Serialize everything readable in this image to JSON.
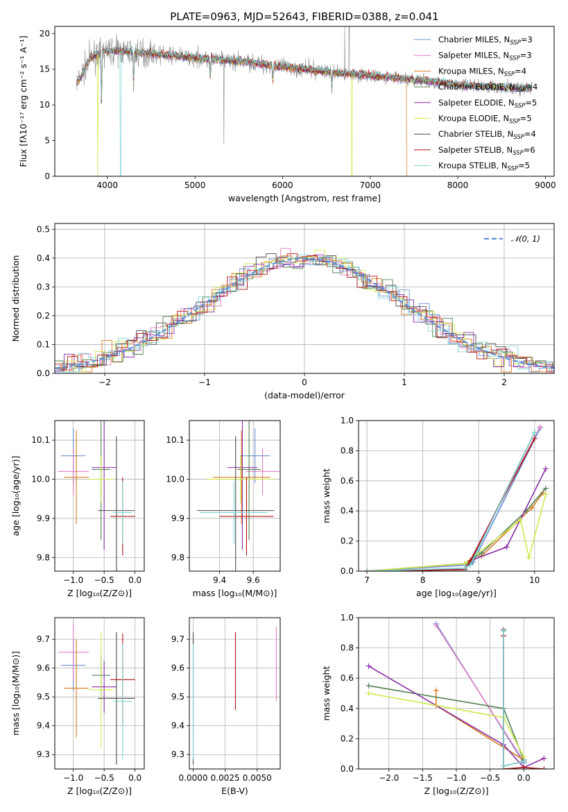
{
  "figure": {
    "title": "PLATE=0963, MJD=52643, FIBERID=0388, z=0.041"
  },
  "models": [
    {
      "name": "Chabrier MILES",
      "nssp": "3",
      "color": "#6b8fd6"
    },
    {
      "name": "Salpeter MILES",
      "nssp": "3",
      "color": "#e07fc2"
    },
    {
      "name": "Kroupa MILES",
      "nssp": "4",
      "color": "#d97a1e"
    },
    {
      "name": "Chabrier ELODIE",
      "nssp": "4",
      "color": "#4f7f4f"
    },
    {
      "name": "Salpeter ELODIE",
      "nssp": "5",
      "color": "#8a2aa8"
    },
    {
      "name": "Kroupa ELODIE",
      "nssp": "5",
      "color": "#cfe84a"
    },
    {
      "name": "Chabrier STELIB",
      "nssp": "4",
      "color": "#4a4a4a"
    },
    {
      "name": "Salpeter STELIB",
      "nssp": "6",
      "color": "#b30f0f"
    },
    {
      "name": "Kroupa STELIB",
      "nssp": "5",
      "color": "#7fd3d3"
    }
  ],
  "chart_data": [
    {
      "id": "spectrum",
      "type": "line",
      "xlabel": "wavelength [Angstrom, rest frame]",
      "ylabel": "Flux [fλ10⁻¹⁷ erg cm⁻² s⁻¹ A⁻¹]",
      "xlim": [
        3400,
        9100
      ],
      "ylim": [
        0,
        21
      ],
      "xticks": [
        4000,
        5000,
        6000,
        7000,
        8000,
        9000
      ],
      "yticks": [
        0,
        5,
        10,
        15,
        20
      ],
      "legend": "top-right",
      "continuum": [
        [
          3650,
          13
        ],
        [
          3700,
          14
        ],
        [
          3800,
          16.5
        ],
        [
          3950,
          17.5
        ],
        [
          4100,
          17.6
        ],
        [
          4400,
          17.3
        ],
        [
          4800,
          16.8
        ],
        [
          5200,
          16.4
        ],
        [
          5600,
          16
        ],
        [
          6000,
          15.3
        ],
        [
          6400,
          14.8
        ],
        [
          6800,
          14.3
        ],
        [
          7200,
          13.9
        ],
        [
          7600,
          13.4
        ],
        [
          8000,
          12.8
        ],
        [
          8400,
          12.5
        ],
        [
          8850,
          12.3
        ]
      ],
      "absorption_dips": [
        [
          3933,
          9
        ],
        [
          4300,
          12
        ],
        [
          5175,
          13.5
        ],
        [
          5890,
          13
        ],
        [
          6563,
          12
        ]
      ],
      "data_spikes": [
        [
          5330,
          4.5
        ],
        [
          6710,
          21
        ],
        [
          6760,
          21
        ]
      ],
      "model_drops": [
        [
          3890,
          "Kroupa ELODIE"
        ],
        [
          4150,
          "Kroupa STELIB"
        ],
        [
          6790,
          "Kroupa ELODIE"
        ],
        [
          7420,
          "Kroupa MILES"
        ]
      ]
    },
    {
      "id": "residuals",
      "type": "step",
      "xlabel": "(data-model)/error",
      "ylabel": "Normed distribution",
      "xlim": [
        -2.5,
        2.5
      ],
      "ylim": [
        0,
        0.52
      ],
      "xticks": [
        -2,
        -1,
        0,
        1,
        2
      ],
      "yticks": [
        0.0,
        0.1,
        0.2,
        0.3,
        0.4,
        0.5
      ],
      "grid": true,
      "legend": "top-right",
      "reference_label": "𝒩(0, 1)",
      "reference_color": "#5a8fd6",
      "bin_width": 0.1
    },
    {
      "id": "age_vs_Z",
      "type": "errorbar",
      "xlabel": "Z [log₁₀(Z/Z⊙)]",
      "ylabel": "age  [log₁₀(age/yr)]",
      "xlim": [
        -1.3,
        0.15
      ],
      "ylim": [
        9.765,
        10.15
      ],
      "xticks": [
        -1.0,
        -0.5,
        0.0
      ],
      "yticks": [
        9.8,
        9.9,
        10.0,
        10.1
      ],
      "grid": true,
      "points": [
        {
          "model": "Chabrier MILES",
          "x": -1.0,
          "xerr": 0.2,
          "y": 10.06,
          "yerr": 0.07
        },
        {
          "model": "Salpeter MILES",
          "x": -1.0,
          "xerr": 0.25,
          "y": 10.02,
          "yerr": 0.06
        },
        {
          "model": "Kroupa MILES",
          "x": -0.95,
          "xerr": 0.2,
          "y": 10.005,
          "yerr": 0.12
        },
        {
          "model": "Chabrier ELODIE",
          "x": -0.55,
          "xerr": 0.15,
          "y": 10.025,
          "yerr": 0.18
        },
        {
          "model": "Salpeter ELODIE",
          "x": -0.5,
          "xerr": 0.2,
          "y": 10.03,
          "yerr": 0.21
        },
        {
          "model": "Kroupa ELODIE",
          "x": -0.55,
          "xerr": 0.2,
          "y": 10.0,
          "yerr": 0.06
        },
        {
          "model": "Chabrier STELIB",
          "x": -0.3,
          "xerr": 0.3,
          "y": 9.92,
          "yerr": 0.19
        },
        {
          "model": "Salpeter STELIB",
          "x": -0.2,
          "xerr": 0.2,
          "y": 9.905,
          "yerr": 0.1
        },
        {
          "model": "Kroupa STELIB",
          "x": -0.2,
          "xerr": 0.15,
          "y": 9.915,
          "yerr": 0.08
        }
      ]
    },
    {
      "id": "age_vs_mass",
      "type": "errorbar",
      "xlabel": "mass [log₁₀(M/M⊙)]",
      "ylabel": "",
      "xlim": [
        9.22,
        9.76
      ],
      "ylim": [
        9.765,
        10.15
      ],
      "xticks": [
        9.4,
        9.6
      ],
      "yticks": [
        9.8,
        9.9,
        10.0,
        10.1
      ],
      "grid": true,
      "points": [
        {
          "model": "Chabrier MILES",
          "x": 9.61,
          "xerr": 0.09,
          "y": 10.06,
          "yerr": 0.07
        },
        {
          "model": "Salpeter MILES",
          "x": 9.655,
          "xerr": 0.1,
          "y": 10.02,
          "yerr": 0.06
        },
        {
          "model": "Kroupa MILES",
          "x": 9.53,
          "xerr": 0.17,
          "y": 10.005,
          "yerr": 0.12
        },
        {
          "model": "Chabrier ELODIE",
          "x": 9.575,
          "xerr": 0.07,
          "y": 10.025,
          "yerr": 0.18
        },
        {
          "model": "Salpeter ELODIE",
          "x": 9.535,
          "xerr": 0.09,
          "y": 10.03,
          "yerr": 0.21
        },
        {
          "model": "Kroupa ELODIE",
          "x": 9.525,
          "xerr": 0.2,
          "y": 10.0,
          "yerr": 0.06
        },
        {
          "model": "Chabrier STELIB",
          "x": 9.495,
          "xerr": 0.23,
          "y": 9.92,
          "yerr": 0.19
        },
        {
          "model": "Salpeter STELIB",
          "x": 9.56,
          "xerr": 0.16,
          "y": 9.905,
          "yerr": 0.1
        },
        {
          "model": "Kroupa STELIB",
          "x": 9.485,
          "xerr": 0.2,
          "y": 9.915,
          "yerr": 0.08
        }
      ]
    },
    {
      "id": "weight_vs_age",
      "type": "line",
      "xlabel": "age  [log₁₀(age/yr)]",
      "ylabel": "mass weight",
      "xlim": [
        6.85,
        10.35
      ],
      "ylim": [
        0,
        1.0
      ],
      "xticks": [
        7,
        8,
        9,
        10
      ],
      "yticks": [
        0.0,
        0.2,
        0.4,
        0.6,
        0.8,
        1.0
      ],
      "grid": true,
      "series": [
        {
          "model": "Chabrier MILES",
          "points": [
            [
              7.0,
              0.0
            ],
            [
              8.75,
              0.04
            ],
            [
              8.9,
              0.06
            ],
            [
              10.1,
              0.95
            ]
          ]
        },
        {
          "model": "Salpeter MILES",
          "points": [
            [
              7.0,
              0.0
            ],
            [
              8.75,
              0.05
            ],
            [
              8.85,
              0.07
            ],
            [
              10.1,
              0.96
            ]
          ]
        },
        {
          "model": "Kroupa MILES",
          "points": [
            [
              7.0,
              0.0
            ],
            [
              8.75,
              0.05
            ],
            [
              9.05,
              0.1
            ],
            [
              9.95,
              0.42
            ],
            [
              10.15,
              0.52
            ]
          ]
        },
        {
          "model": "Chabrier ELODIE",
          "points": [
            [
              7.0,
              0.0
            ],
            [
              8.75,
              0.05
            ],
            [
              9.05,
              0.12
            ],
            [
              9.85,
              0.4
            ],
            [
              10.2,
              0.55
            ]
          ]
        },
        {
          "model": "Salpeter ELODIE",
          "points": [
            [
              7.0,
              0.0
            ],
            [
              8.75,
              0.01
            ],
            [
              8.85,
              0.07
            ],
            [
              9.5,
              0.16
            ],
            [
              10.2,
              0.68
            ]
          ]
        },
        {
          "model": "Kroupa ELODIE",
          "points": [
            [
              7.0,
              0.0
            ],
            [
              8.75,
              0.05
            ],
            [
              9.75,
              0.34
            ],
            [
              9.9,
              0.09
            ],
            [
              10.2,
              0.51
            ]
          ]
        },
        {
          "model": "Chabrier STELIB",
          "points": [
            [
              7.0,
              0.0
            ],
            [
              8.75,
              0.02
            ],
            [
              8.85,
              0.05
            ],
            [
              10.0,
              0.92
            ]
          ]
        },
        {
          "model": "Salpeter STELIB",
          "points": [
            [
              7.0,
              0.0
            ],
            [
              8.75,
              0.01
            ],
            [
              8.85,
              0.07
            ],
            [
              10.0,
              0.88
            ]
          ]
        },
        {
          "model": "Kroupa STELIB",
          "points": [
            [
              7.0,
              0.0
            ],
            [
              8.75,
              0.02
            ],
            [
              8.85,
              0.04
            ],
            [
              10.0,
              0.92
            ]
          ]
        }
      ]
    },
    {
      "id": "mass_vs_Z",
      "type": "errorbar",
      "xlabel": "Z [log₁₀(Z/Z⊙)]",
      "ylabel": "mass [log₁₀(M/M⊙)]",
      "xlim": [
        -1.3,
        0.15
      ],
      "ylim": [
        9.25,
        9.775
      ],
      "xticks": [
        -1.0,
        -0.5,
        0.0
      ],
      "yticks": [
        9.3,
        9.4,
        9.5,
        9.6,
        9.7
      ],
      "grid": true,
      "points": [
        {
          "model": "Chabrier MILES",
          "x": -1.0,
          "xerr": 0.2,
          "y": 9.61,
          "yerr": 0.09
        },
        {
          "model": "Salpeter MILES",
          "x": -1.0,
          "xerr": 0.25,
          "y": 9.655,
          "yerr": 0.1
        },
        {
          "model": "Kroupa MILES",
          "x": -0.95,
          "xerr": 0.2,
          "y": 9.53,
          "yerr": 0.17
        },
        {
          "model": "Chabrier ELODIE",
          "x": -0.55,
          "xerr": 0.15,
          "y": 9.575,
          "yerr": 0.07
        },
        {
          "model": "Salpeter ELODIE",
          "x": -0.5,
          "xerr": 0.2,
          "y": 9.535,
          "yerr": 0.09
        },
        {
          "model": "Kroupa ELODIE",
          "x": -0.55,
          "xerr": 0.2,
          "y": 9.525,
          "yerr": 0.2
        },
        {
          "model": "Chabrier STELIB",
          "x": -0.3,
          "xerr": 0.3,
          "y": 9.495,
          "yerr": 0.23
        },
        {
          "model": "Salpeter STELIB",
          "x": -0.2,
          "xerr": 0.2,
          "y": 9.56,
          "yerr": 0.16
        },
        {
          "model": "Kroupa STELIB",
          "x": -0.2,
          "xerr": 0.15,
          "y": 9.485,
          "yerr": 0.2
        }
      ]
    },
    {
      "id": "mass_vs_ebv",
      "type": "errorbar",
      "xlabel": "E(B-V)",
      "ylabel": "",
      "xlim": [
        -0.0003,
        0.0068
      ],
      "ylim": [
        9.25,
        9.775
      ],
      "xticks": [
        0.0,
        0.0025,
        0.005
      ],
      "xticklabels": [
        "0.0000",
        "0.0025",
        "0.0050"
      ],
      "yticks": [
        9.3,
        9.4,
        9.5,
        9.6,
        9.7
      ],
      "grid": true,
      "points": [
        {
          "model": "Chabrier MILES",
          "x": 0.0,
          "xerr": 0,
          "y": 9.61,
          "yerr": 0.09
        },
        {
          "model": "Kroupa MILES",
          "x": 0.0,
          "xerr": 0,
          "y": 9.53,
          "yerr": 0.17
        },
        {
          "model": "Chabrier STELIB",
          "x": 0.0,
          "xerr": 0,
          "y": 9.495,
          "yerr": 0.23
        },
        {
          "model": "Kroupa STELIB",
          "x": 0.0,
          "xerr": 0,
          "y": 9.485,
          "yerr": 0.2
        },
        {
          "model": "Salpeter STELIB",
          "x": 0.0033,
          "xerr": 0,
          "y": 9.59,
          "yerr": 0.135
        },
        {
          "model": "Salpeter MILES",
          "x": 0.0065,
          "xerr": 0,
          "y": 9.615,
          "yerr": 0.13
        }
      ]
    },
    {
      "id": "weight_vs_Z",
      "type": "line",
      "xlabel": "Z [log₁₀(Z/Z⊙)]",
      "ylabel": "mass weight",
      "xlim": [
        -2.45,
        0.45
      ],
      "ylim": [
        0,
        1.0
      ],
      "xticks": [
        -2.0,
        -1.5,
        -1.0,
        -0.5,
        0.0
      ],
      "yticks": [
        0.0,
        0.2,
        0.4,
        0.6,
        0.8,
        1.0
      ],
      "grid": true,
      "series": [
        {
          "model": "Chabrier MILES",
          "points": [
            [
              -1.3,
              0.96
            ],
            [
              0.0,
              0.04
            ]
          ]
        },
        {
          "model": "Salpeter MILES",
          "points": [
            [
              -1.3,
              0.95
            ],
            [
              0.0,
              0.05
            ]
          ]
        },
        {
          "model": "Kroupa MILES",
          "points": [
            [
              -1.3,
              0.52
            ],
            [
              -1.3,
              0.42
            ],
            [
              0.0,
              0.06
            ]
          ]
        },
        {
          "model": "Chabrier ELODIE",
          "points": [
            [
              -2.3,
              0.55
            ],
            [
              -0.3,
              0.4
            ],
            [
              0.0,
              0.06
            ]
          ]
        },
        {
          "model": "Salpeter ELODIE",
          "points": [
            [
              -2.3,
              0.68
            ],
            [
              -0.3,
              0.16
            ],
            [
              0.0,
              0.01
            ],
            [
              0.3,
              0.07
            ]
          ]
        },
        {
          "model": "Kroupa ELODIE",
          "points": [
            [
              -2.3,
              0.5
            ],
            [
              -0.3,
              0.34
            ],
            [
              0.0,
              0.08
            ]
          ]
        },
        {
          "model": "Chabrier STELIB",
          "points": [
            [
              -0.3,
              0.92
            ],
            [
              -0.3,
              0.02
            ],
            [
              0.0,
              0.05
            ]
          ]
        },
        {
          "model": "Salpeter STELIB",
          "points": [
            [
              -0.3,
              0.88
            ],
            [
              -0.3,
              0.0
            ],
            [
              0.0,
              0.01
            ],
            [
              0.3,
              0.0
            ]
          ]
        },
        {
          "model": "Kroupa STELIB",
          "points": [
            [
              -0.3,
              0.91
            ],
            [
              -0.3,
              0.02
            ],
            [
              0.0,
              0.05
            ]
          ]
        }
      ]
    }
  ]
}
